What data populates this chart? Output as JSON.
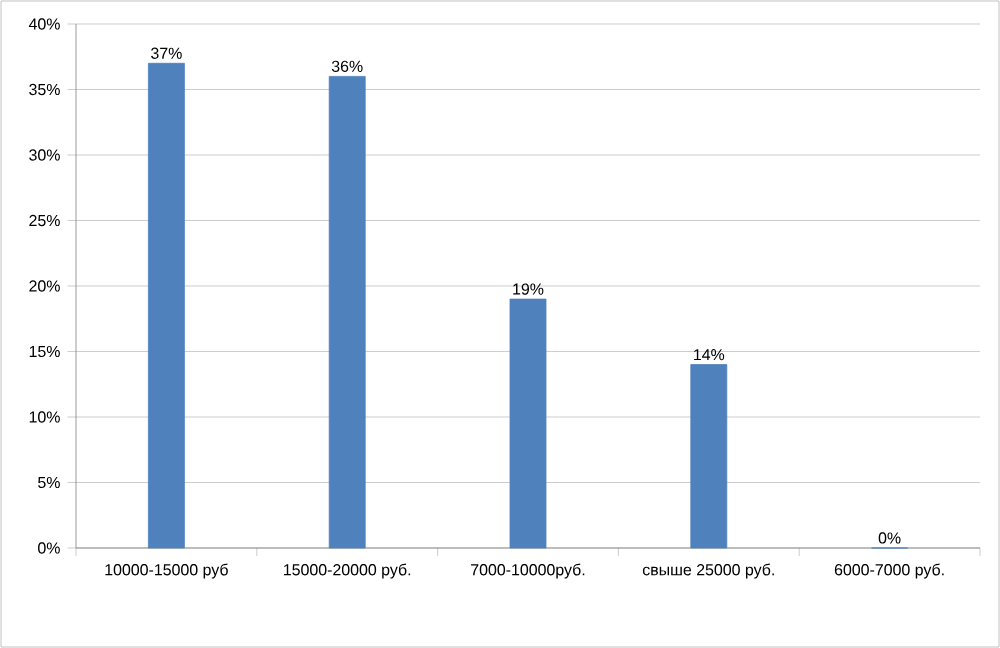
{
  "chart_data": {
    "type": "bar",
    "categories": [
      "10000-15000 руб",
      "15000-20000 руб.",
      "7000-10000руб.",
      "свыше 25000 руб.",
      "6000-7000 руб."
    ],
    "values": [
      37,
      36,
      19,
      14,
      0
    ],
    "value_labels": [
      "37%",
      "36%",
      "19%",
      "14%",
      "0%"
    ],
    "color": "#4f81bd",
    "ylim": [
      0,
      40
    ],
    "yticks": [
      {
        "value": 0,
        "label": "0%"
      },
      {
        "value": 5,
        "label": "5%"
      },
      {
        "value": 10,
        "label": "10%"
      },
      {
        "value": 15,
        "label": "15%"
      },
      {
        "value": 20,
        "label": "20%"
      },
      {
        "value": 25,
        "label": "25%"
      },
      {
        "value": 30,
        "label": "30%"
      },
      {
        "value": 35,
        "label": "35%"
      },
      {
        "value": 40,
        "label": "40%"
      }
    ],
    "grid": "y"
  }
}
